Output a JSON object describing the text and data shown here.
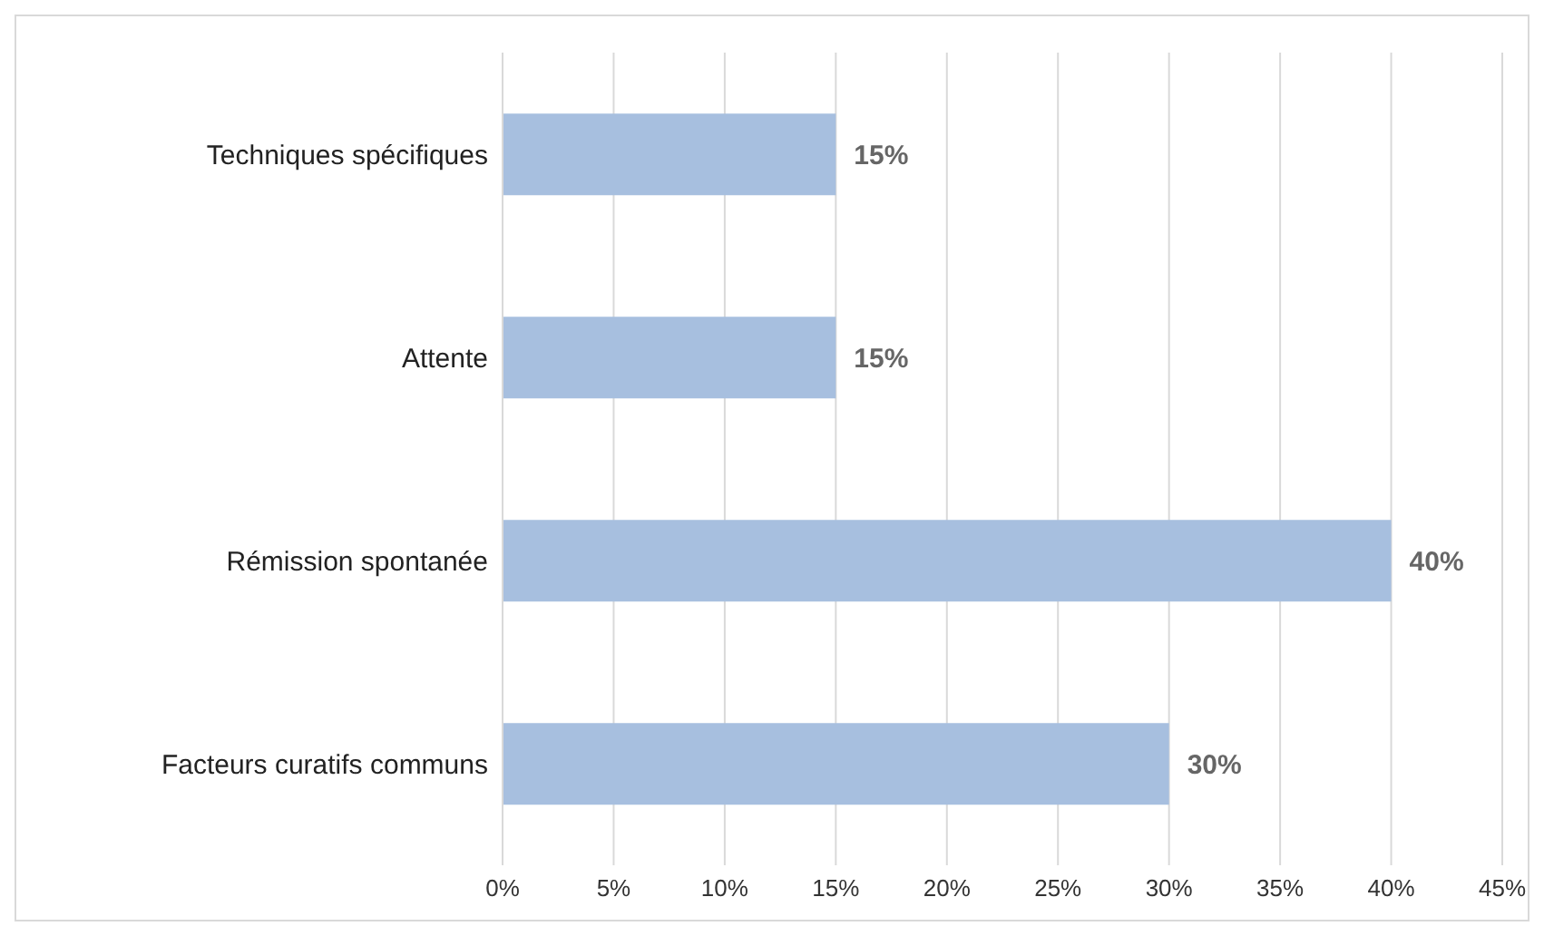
{
  "chart_data": {
    "type": "bar",
    "orientation": "horizontal",
    "categories": [
      "Techniques spécifiques",
      "Attente",
      "Rémission spontanée",
      "Facteurs curatifs communs"
    ],
    "values": [
      15,
      15,
      40,
      30
    ],
    "color": "#a7bfdf",
    "value_labels": [
      "15%",
      "15%",
      "40%",
      "30%"
    ],
    "xlim": [
      0,
      45
    ],
    "xticks": [
      {
        "value": 0,
        "label": "0%"
      },
      {
        "value": 5,
        "label": "5%"
      },
      {
        "value": 10,
        "label": "10%"
      },
      {
        "value": 15,
        "label": "15%"
      },
      {
        "value": 20,
        "label": "20%"
      },
      {
        "value": 25,
        "label": "25%"
      },
      {
        "value": 30,
        "label": "30%"
      },
      {
        "value": 35,
        "label": "35%"
      },
      {
        "value": 40,
        "label": "40%"
      },
      {
        "value": 45,
        "label": "45%"
      }
    ],
    "grid": "x"
  }
}
